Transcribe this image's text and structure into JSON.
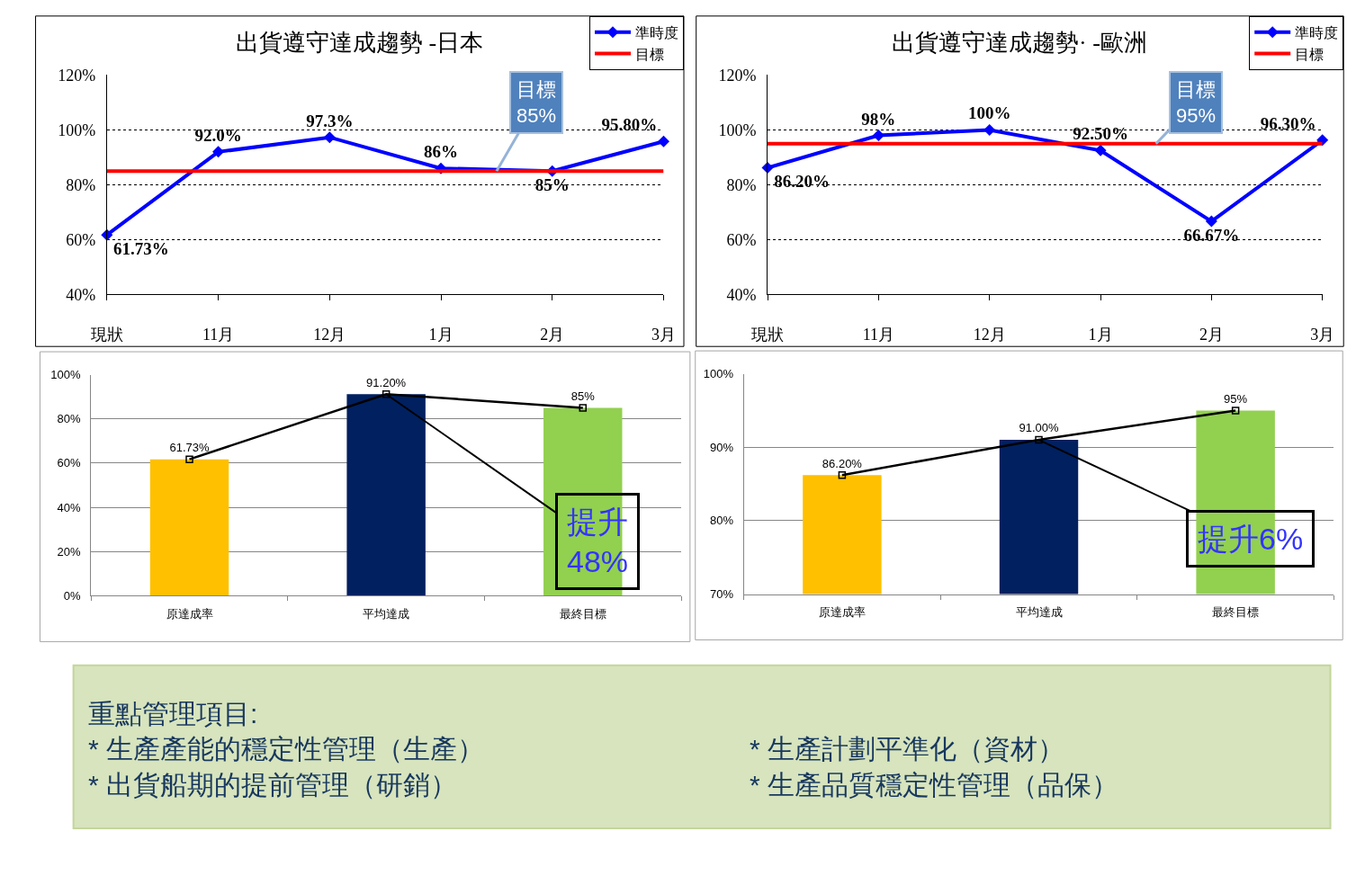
{
  "chart_data": [
    {
      "type": "line",
      "title": "出貨遵守達成趨勢 -日本",
      "categories": [
        "現狀",
        "11月",
        "12月",
        "1月",
        "2月",
        "3月"
      ],
      "series": [
        {
          "name": "準時度",
          "color": "#0000ff",
          "marker": "diamond",
          "values": [
            61.73,
            92.0,
            97.3,
            86,
            85,
            95.8
          ],
          "value_labels": [
            "61.73%",
            "92.0%",
            "97.3%",
            "86%",
            "85%",
            "95.80%"
          ]
        },
        {
          "name": "目標",
          "color": "#ff0000",
          "marker": "none",
          "values": [
            85,
            85,
            85,
            85,
            85,
            85
          ]
        }
      ],
      "ylim": [
        40,
        120
      ],
      "yticks": [
        {
          "value": 40,
          "label": "40%"
        },
        {
          "value": 60,
          "label": "60%"
        },
        {
          "value": 80,
          "label": "80%"
        },
        {
          "value": 100,
          "label": "100%"
        },
        {
          "value": 120,
          "label": "120%"
        }
      ],
      "grid": "y",
      "legend": "top right",
      "annotations": [
        {
          "text": "目標\n85%",
          "y": 85
        }
      ]
    },
    {
      "type": "line",
      "title": "出貨遵守達成趨勢· -歐洲",
      "categories": [
        "現狀",
        "11月",
        "12月",
        "1月",
        "2月",
        "3月"
      ],
      "series": [
        {
          "name": "準時度",
          "color": "#0000ff",
          "marker": "diamond",
          "values": [
            86.2,
            98,
            100,
            92.5,
            66.67,
            96.3
          ],
          "value_labels": [
            "86.20%",
            "98%",
            "100%",
            "92.50%",
            "66.67%",
            "96.30%"
          ]
        },
        {
          "name": "目標",
          "color": "#ff0000",
          "marker": "none",
          "values": [
            95,
            95,
            95,
            95,
            95,
            95
          ]
        }
      ],
      "ylim": [
        40,
        120
      ],
      "yticks": [
        {
          "value": 40,
          "label": "40%"
        },
        {
          "value": 60,
          "label": "60%"
        },
        {
          "value": 80,
          "label": "80%"
        },
        {
          "value": 100,
          "label": "100%"
        },
        {
          "value": 120,
          "label": "120%"
        }
      ],
      "grid": "y",
      "legend": "top right",
      "annotations": [
        {
          "text": "目標\n95%",
          "y": 95
        }
      ]
    },
    {
      "type": "bar",
      "categories": [
        "原達成率",
        "平均達成",
        "最終目標"
      ],
      "series": [
        {
          "type": "bar",
          "colors": [
            "#ffc000",
            "#002060",
            "#92d050"
          ],
          "values": [
            61.73,
            91.2,
            85
          ]
        },
        {
          "type": "line",
          "color": "#000000",
          "marker": "square",
          "values": [
            61.73,
            91.2,
            85
          ],
          "value_labels": [
            "61.73%",
            "91.20%",
            "85%"
          ]
        }
      ],
      "ylim": [
        0,
        100
      ],
      "yticks": [
        {
          "value": 0,
          "label": "0%"
        },
        {
          "value": 20,
          "label": "20%"
        },
        {
          "value": 40,
          "label": "40%"
        },
        {
          "value": 60,
          "label": "60%"
        },
        {
          "value": 80,
          "label": "80%"
        },
        {
          "value": 100,
          "label": "100%"
        }
      ],
      "grid": "y",
      "annotations": [
        {
          "text": "提升\n48%",
          "x": "平均達成",
          "y": 91.2
        }
      ]
    },
    {
      "type": "bar",
      "categories": [
        "原達成率",
        "平均達成",
        "最終目標"
      ],
      "series": [
        {
          "type": "bar",
          "colors": [
            "#ffc000",
            "#002060",
            "#92d050"
          ],
          "values": [
            86.2,
            91.0,
            95
          ]
        },
        {
          "type": "line",
          "color": "#000000",
          "marker": "square",
          "values": [
            86.2,
            91.0,
            95
          ],
          "value_labels": [
            "86.20%",
            "91.00%",
            "95%"
          ]
        }
      ],
      "ylim": [
        70,
        100
      ],
      "yticks": [
        {
          "value": 70,
          "label": "70%"
        },
        {
          "value": 80,
          "label": "80%"
        },
        {
          "value": 90,
          "label": "90%"
        },
        {
          "value": 100,
          "label": "100%"
        }
      ],
      "grid": "y",
      "annotations": [
        {
          "text": "提升6%",
          "x": "平均達成",
          "y": 91.0
        }
      ]
    },
    {
      "type": "other",
      "title": "重點管理項目:",
      "annotations": [
        "* 生產產能的穩定性管理（生產）",
        "* 生產計劃平準化（資材）",
        "* 出貨船期的提前管理（研銷）",
        "* 生產品質穩定性管理（品保）"
      ]
    }
  ]
}
